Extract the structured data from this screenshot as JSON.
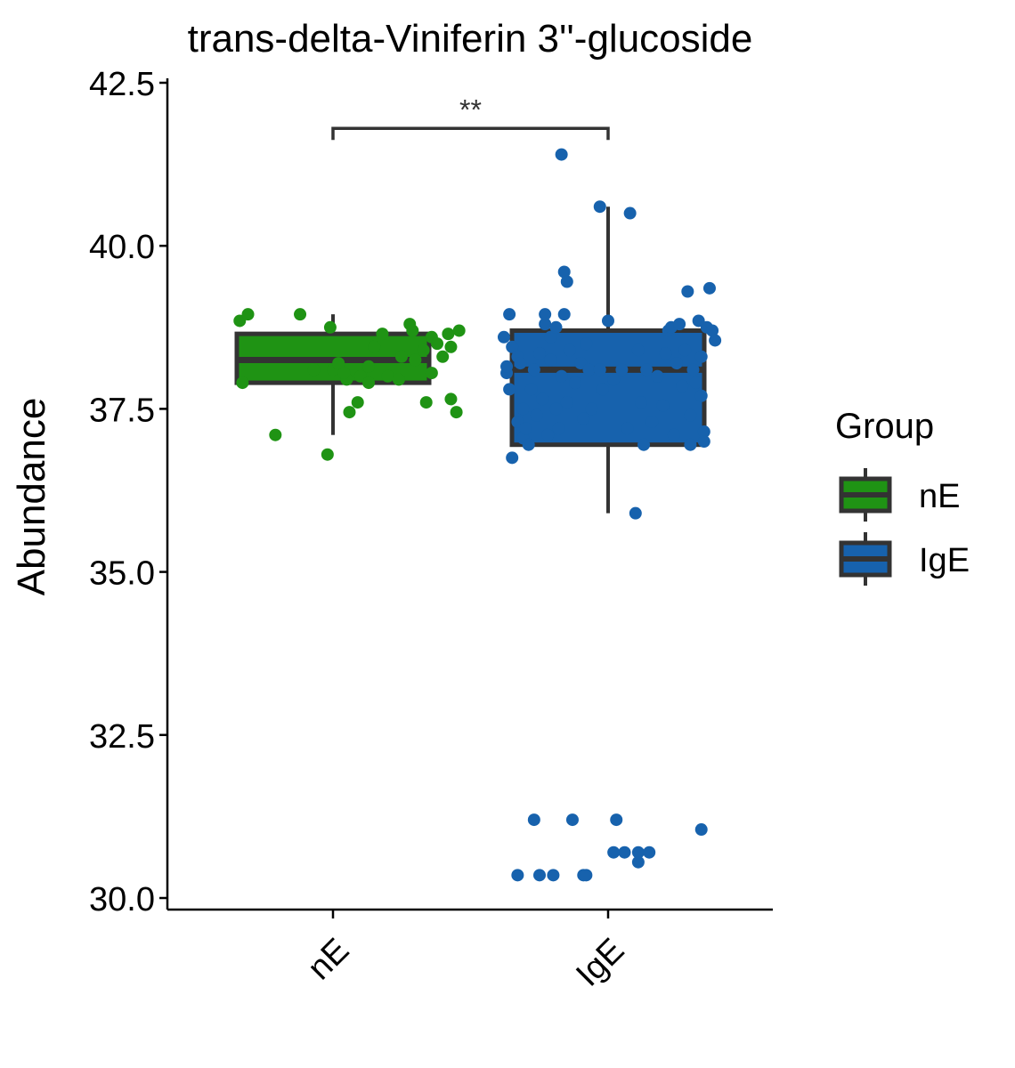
{
  "chart_data": {
    "type": "box",
    "title": "trans-delta-Viniferin 3''-glucoside",
    "xlabel": "",
    "ylabel": "Abundance",
    "ylim": [
      29.8,
      42.5
    ],
    "yticks": [
      30.0,
      32.5,
      35.0,
      37.5,
      40.0,
      42.5
    ],
    "ytick_labels": [
      "30.0",
      "32.5",
      "35.0",
      "37.5",
      "40.0",
      "42.5"
    ],
    "categories": [
      "nE",
      "IgE"
    ],
    "legend": {
      "title": "Group",
      "position": "right"
    },
    "significance": {
      "label": "**",
      "between": [
        "nE",
        "IgE"
      ],
      "y": 41.8
    },
    "series": [
      {
        "name": "nE",
        "color": "#1f9314",
        "box": {
          "q1": 37.9,
          "median": 38.25,
          "q3": 38.65,
          "whisker_low": 37.1,
          "whisker_high": 38.95
        },
        "points": [
          [
            -0.34,
            38.85
          ],
          [
            -0.31,
            38.95
          ],
          [
            -0.33,
            37.9
          ],
          [
            -0.21,
            37.1
          ],
          [
            -0.12,
            38.95
          ],
          [
            -0.02,
            36.8
          ],
          [
            -0.01,
            38.75
          ],
          [
            0.0,
            38.1
          ],
          [
            0.02,
            38.2
          ],
          [
            0.05,
            37.95
          ],
          [
            0.06,
            37.45
          ],
          [
            0.09,
            37.6
          ],
          [
            0.1,
            38.0
          ],
          [
            0.13,
            37.9
          ],
          [
            0.13,
            38.15
          ],
          [
            0.15,
            38.45
          ],
          [
            0.18,
            38.65
          ],
          [
            0.2,
            38.0
          ],
          [
            0.24,
            37.95
          ],
          [
            0.25,
            38.3
          ],
          [
            0.28,
            38.8
          ],
          [
            0.29,
            38.7
          ],
          [
            0.3,
            38.25
          ],
          [
            0.33,
            38.4
          ],
          [
            0.34,
            37.6
          ],
          [
            0.36,
            38.6
          ],
          [
            0.36,
            38.05
          ],
          [
            0.38,
            38.5
          ],
          [
            0.4,
            38.3
          ],
          [
            0.42,
            38.65
          ],
          [
            0.43,
            37.65
          ],
          [
            0.43,
            38.45
          ],
          [
            0.45,
            37.45
          ],
          [
            0.46,
            38.7
          ],
          [
            -0.07,
            38.1
          ],
          [
            0.04,
            38.05
          ]
        ]
      },
      {
        "name": "IgE",
        "color": "#1762ad",
        "box": {
          "q1": 36.95,
          "median": 38.1,
          "q3": 38.7,
          "whisker_low": 35.9,
          "whisker_high": 40.6
        },
        "points": [
          [
            -0.38,
            38.6
          ],
          [
            -0.37,
            38.05
          ],
          [
            -0.37,
            38.15
          ],
          [
            -0.36,
            37.8
          ],
          [
            -0.36,
            38.95
          ],
          [
            -0.35,
            38.45
          ],
          [
            -0.35,
            36.75
          ],
          [
            -0.33,
            38.3
          ],
          [
            -0.33,
            37.3
          ],
          [
            -0.32,
            38.2
          ],
          [
            -0.31,
            37.5
          ],
          [
            -0.31,
            37.05
          ],
          [
            -0.3,
            37.2
          ],
          [
            -0.29,
            36.95
          ],
          [
            -0.28,
            37.8
          ],
          [
            -0.27,
            38.1
          ],
          [
            -0.26,
            37.4
          ],
          [
            -0.25,
            38.35
          ],
          [
            -0.24,
            37.65
          ],
          [
            -0.23,
            38.8
          ],
          [
            -0.23,
            38.95
          ],
          [
            -0.22,
            37.1
          ],
          [
            -0.21,
            38.6
          ],
          [
            -0.21,
            38.25
          ],
          [
            -0.19,
            37.5
          ],
          [
            -0.19,
            38.75
          ],
          [
            -0.18,
            37.2
          ],
          [
            -0.17,
            38.0
          ],
          [
            -0.17,
            41.4
          ],
          [
            -0.16,
            39.6
          ],
          [
            -0.15,
            39.45
          ],
          [
            -0.16,
            38.95
          ],
          [
            -0.15,
            37.6
          ],
          [
            -0.14,
            38.4
          ],
          [
            -0.12,
            37.9
          ],
          [
            -0.1,
            38.2
          ],
          [
            -0.09,
            37.35
          ],
          [
            -0.08,
            38.5
          ],
          [
            -0.07,
            38.1
          ],
          [
            -0.06,
            37.5
          ],
          [
            -0.03,
            38.1
          ],
          [
            -0.03,
            40.6
          ],
          [
            -0.02,
            37.8
          ],
          [
            0.0,
            38.85
          ],
          [
            0.02,
            37.95
          ],
          [
            0.05,
            38.1
          ],
          [
            0.07,
            37.2
          ],
          [
            0.08,
            40.5
          ],
          [
            0.1,
            35.9
          ],
          [
            0.11,
            38.4
          ],
          [
            0.12,
            37.6
          ],
          [
            0.13,
            36.95
          ],
          [
            0.14,
            38.1
          ],
          [
            0.16,
            37.3
          ],
          [
            0.18,
            38.0
          ],
          [
            0.2,
            37.55
          ],
          [
            0.21,
            38.35
          ],
          [
            0.22,
            38.7
          ],
          [
            0.23,
            38.75
          ],
          [
            0.24,
            37.1
          ],
          [
            0.25,
            38.2
          ],
          [
            0.26,
            38.8
          ],
          [
            0.27,
            37.85
          ],
          [
            0.28,
            38.4
          ],
          [
            0.29,
            39.3
          ],
          [
            0.3,
            37.4
          ],
          [
            0.3,
            36.95
          ],
          [
            0.31,
            38.1
          ],
          [
            0.32,
            37.9
          ],
          [
            0.33,
            38.85
          ],
          [
            0.34,
            38.3
          ],
          [
            0.34,
            37.7
          ],
          [
            0.35,
            37.15
          ],
          [
            0.36,
            38.75
          ],
          [
            0.37,
            39.35
          ],
          [
            0.38,
            38.7
          ],
          [
            0.39,
            38.55
          ],
          [
            0.35,
            37.0
          ],
          [
            -0.33,
            30.35
          ],
          [
            -0.27,
            31.2
          ],
          [
            -0.25,
            30.35
          ],
          [
            -0.2,
            30.35
          ],
          [
            -0.13,
            31.2
          ],
          [
            -0.09,
            30.35
          ],
          [
            -0.08,
            30.35
          ],
          [
            0.02,
            30.7
          ],
          [
            0.03,
            31.2
          ],
          [
            0.06,
            30.7
          ],
          [
            0.11,
            30.55
          ],
          [
            0.11,
            30.7
          ],
          [
            0.15,
            30.7
          ],
          [
            0.34,
            31.05
          ]
        ]
      }
    ]
  }
}
